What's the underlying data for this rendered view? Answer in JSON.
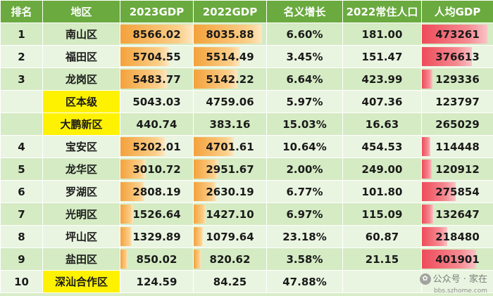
{
  "headers": [
    "排名",
    "地区",
    "2023GDP",
    "2022GDP",
    "名义增长",
    "2022常住人口",
    "人均GDP"
  ],
  "rows": [
    {
      "rank": "1",
      "region": "南山区",
      "gdp2023": "8566.02",
      "gdp2022": "8035.88",
      "growth": "6.60%",
      "pop": "181.00",
      "percap": "473261",
      "hl": false
    },
    {
      "rank": "2",
      "region": "福田区",
      "gdp2023": "5704.55",
      "gdp2022": "5514.49",
      "growth": "3.45%",
      "pop": "151.47",
      "percap": "376613",
      "hl": false
    },
    {
      "rank": "3",
      "region": "龙岗区",
      "gdp2023": "5483.77",
      "gdp2022": "5142.22",
      "growth": "6.64%",
      "pop": "423.99",
      "percap": "129336",
      "hl": false
    },
    {
      "rank": "",
      "region": "区本级",
      "gdp2023": "5043.03",
      "gdp2022": "4759.06",
      "growth": "5.97%",
      "pop": "407.36",
      "percap": "123797",
      "hl": true
    },
    {
      "rank": "",
      "region": "大鹏新区",
      "gdp2023": "440.74",
      "gdp2022": "383.16",
      "growth": "15.03%",
      "pop": "16.63",
      "percap": "265029",
      "hl": true
    },
    {
      "rank": "4",
      "region": "宝安区",
      "gdp2023": "5202.01",
      "gdp2022": "4701.61",
      "growth": "10.64%",
      "pop": "454.53",
      "percap": "114448",
      "hl": false
    },
    {
      "rank": "5",
      "region": "龙华区",
      "gdp2023": "3010.72",
      "gdp2022": "2951.67",
      "growth": "2.00%",
      "pop": "249.00",
      "percap": "120912",
      "hl": false
    },
    {
      "rank": "6",
      "region": "罗湖区",
      "gdp2023": "2808.19",
      "gdp2022": "2630.19",
      "growth": "6.77%",
      "pop": "101.80",
      "percap": "275854",
      "hl": false
    },
    {
      "rank": "7",
      "region": "光明区",
      "gdp2023": "1526.64",
      "gdp2022": "1427.10",
      "growth": "6.97%",
      "pop": "115.09",
      "percap": "132647",
      "hl": false
    },
    {
      "rank": "8",
      "region": "坪山区",
      "gdp2023": "1329.89",
      "gdp2022": "1079.64",
      "growth": "23.18%",
      "pop": "60.87",
      "percap": "218480",
      "hl": false
    },
    {
      "rank": "9",
      "region": "盐田区",
      "gdp2023": "850.02",
      "gdp2022": "820.62",
      "growth": "3.58%",
      "pop": "21.15",
      "percap": "401901",
      "hl": false
    },
    {
      "rank": "10",
      "region": "深汕合作区",
      "gdp2023": "124.59",
      "gdp2022": "84.25",
      "growth": "47.88%",
      "pop": "",
      "percap": "",
      "hl": true
    }
  ],
  "colors": {
    "header": "#6aaa3e",
    "gdp_bar": "#f4a23c",
    "percap_bar": "#ee4b5a",
    "highlight": "#fff200"
  },
  "watermark": {
    "text": "公众号 · 家在",
    "sub": "bbs.szhome.com",
    "icon": "wechat-icon"
  }
}
